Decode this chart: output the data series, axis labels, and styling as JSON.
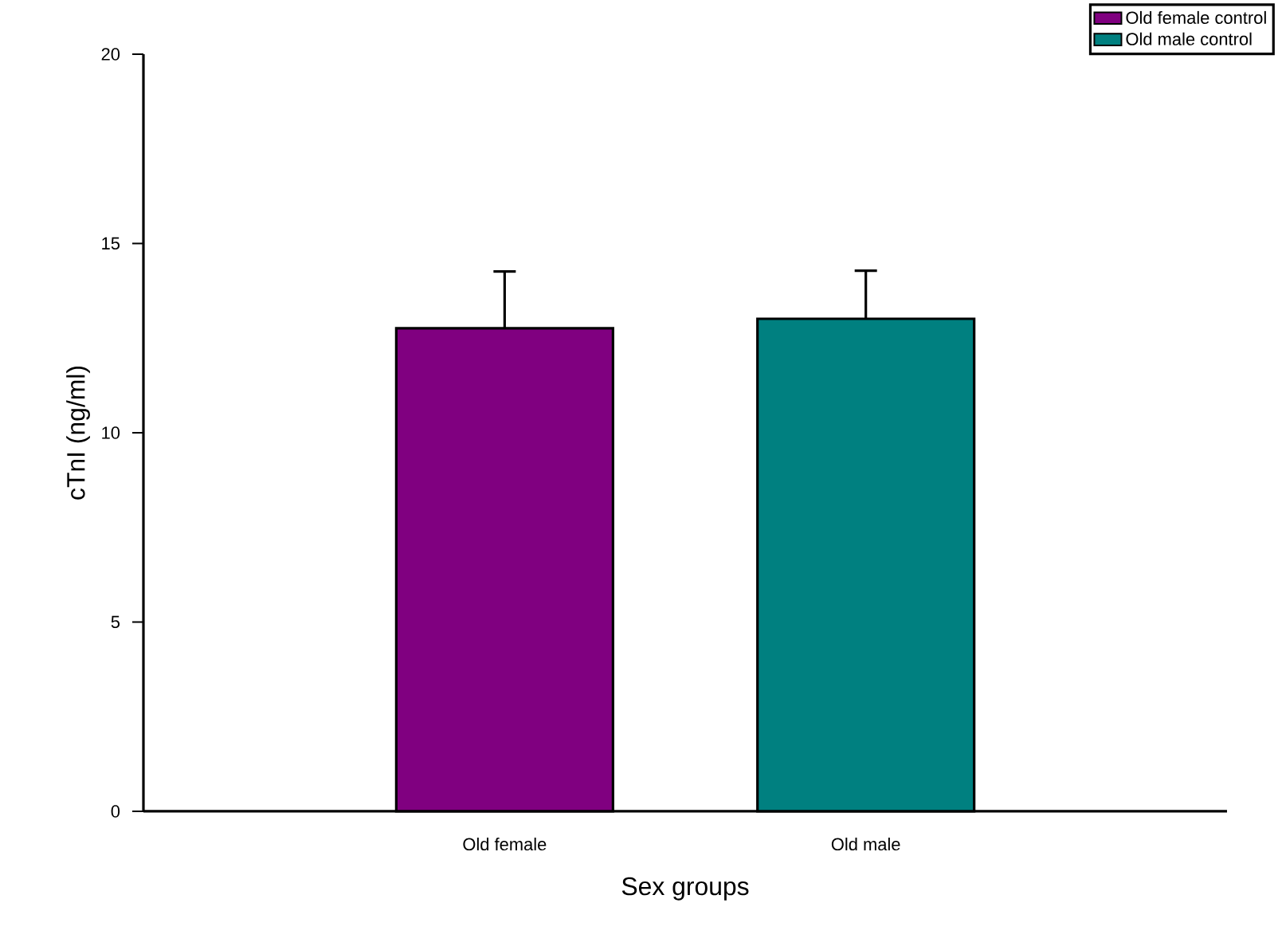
{
  "chart_data": {
    "type": "bar",
    "xlabel": "Sex groups",
    "ylabel": "cTnI (ng/ml)",
    "categories": [
      "Old female",
      "Old male"
    ],
    "series": [
      {
        "name": "Old female control",
        "color": "#800080",
        "values": [
          12.76,
          null
        ],
        "errors": [
          1.5,
          null
        ]
      },
      {
        "name": "Old male control",
        "color": "#008080",
        "values": [
          null,
          13.01
        ],
        "errors": [
          null,
          1.27
        ]
      }
    ],
    "ylim": [
      0,
      20
    ],
    "yticks": [
      0,
      5,
      10,
      15,
      20
    ],
    "legend": "top right",
    "grid": false
  }
}
